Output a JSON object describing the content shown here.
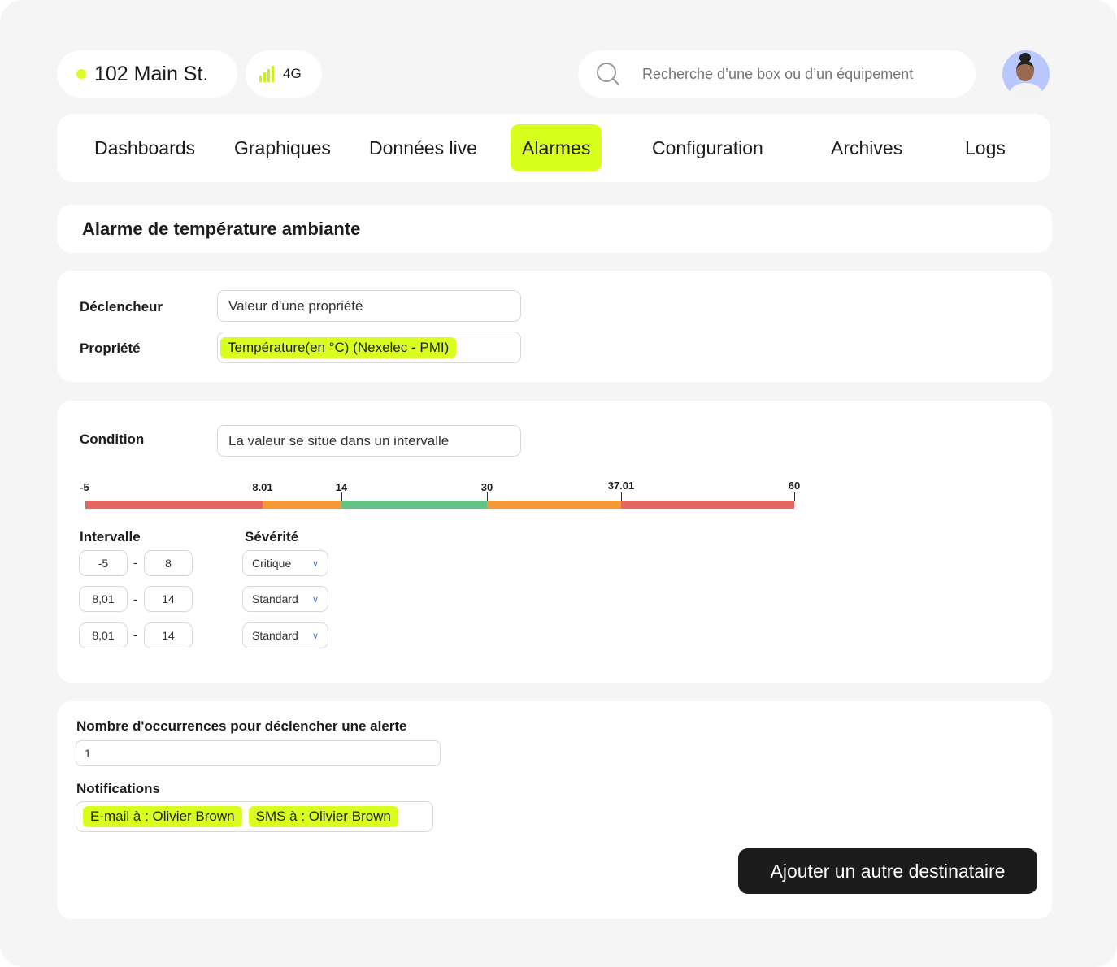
{
  "header": {
    "location": "102 Main St.",
    "network": "4G",
    "search_placeholder": "Recherche d’une box ou d’un équipement",
    "status_color": "#d8ff1e"
  },
  "nav": {
    "tabs": [
      {
        "label": "Dashboards",
        "active": false
      },
      {
        "label": "Graphiques",
        "active": false
      },
      {
        "label": "Données live",
        "active": false
      },
      {
        "label": "Alarmes",
        "active": true
      },
      {
        "label": "Configuration",
        "active": false
      },
      {
        "label": "Archives",
        "active": false
      },
      {
        "label": "Logs",
        "active": false
      }
    ]
  },
  "alarm": {
    "title": "Alarme de température ambiante",
    "trigger_label": "Déclencheur",
    "trigger_value": "Valeur d'une propriété",
    "property_label": "Propriété",
    "property_value": "Température(en °C) (Nexelec - PMI)",
    "condition_label": "Condition",
    "condition_value": "La valeur se situe dans un intervalle",
    "scale": {
      "ticks": [
        "-5",
        "8.01",
        "14",
        "30",
        "37.01",
        "60"
      ],
      "segments": [
        {
          "from": -5,
          "to": 8.01,
          "color": "#e46661"
        },
        {
          "from": 8.01,
          "to": 14,
          "color": "#f29a3a"
        },
        {
          "from": 14,
          "to": 30,
          "color": "#63c384"
        },
        {
          "from": 30,
          "to": 37.01,
          "color": "#f29a3a"
        },
        {
          "from": 37.01,
          "to": 60,
          "color": "#e46661"
        }
      ]
    },
    "interval_label": "Intervalle",
    "severity_label": "Sévérité",
    "rows": [
      {
        "min": "-5",
        "max": "8",
        "severity": "Critique"
      },
      {
        "min": "8,01",
        "max": "14",
        "severity": "Standard"
      },
      {
        "min": "8,01",
        "max": "14",
        "severity": "Standard"
      }
    ],
    "occurrences_label": "Nombre d'occurrences pour déclencher une alerte",
    "occurrences_value": "1",
    "notifications_label": "Notifications",
    "notifications": [
      "E-mail à : Olivier Brown",
      "SMS à : Olivier Brown"
    ],
    "add_button": "Ajouter un autre destinataire"
  }
}
